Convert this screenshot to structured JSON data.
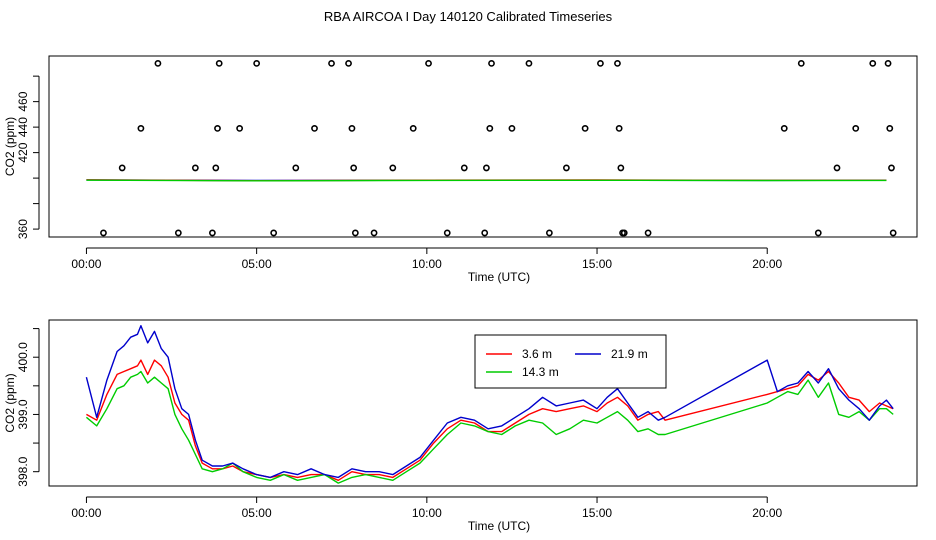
{
  "title": "RBA AIRCOA I  Day 140120  Calibrated Timeseries",
  "colors": {
    "axis": "#000000",
    "series_3_6m": "#ff0000",
    "series_14_3m": "#00cc00",
    "series_21_9m": "#0000cc",
    "flag_points": "#000000"
  },
  "chart_data": [
    {
      "type": "scatter",
      "title": "",
      "xlabel": "Time (UTC)",
      "ylabel": "CO2 (ppm)",
      "xlim": [
        -1.1,
        24.4
      ],
      "ylim": [
        353.8,
        495.8
      ],
      "x_ticks": [
        0,
        5,
        10,
        15,
        20
      ],
      "x_tick_labels": [
        "00:00",
        "05:00",
        "10:00",
        "15:00",
        "20:00"
      ],
      "y_ticks": [
        360,
        380,
        400,
        420,
        440,
        460,
        480
      ],
      "y_tick_labels": [
        "360",
        "",
        "",
        "420",
        "440",
        "460",
        ""
      ],
      "grid": false,
      "points": {
        "x": [
          0.5,
          1.05,
          1.6,
          2.1,
          2.7,
          3.2,
          3.7,
          3.8,
          3.85,
          3.9,
          4.5,
          5.0,
          5.5,
          6.15,
          6.7,
          7.2,
          7.7,
          7.8,
          7.85,
          7.9,
          8.45,
          9.0,
          9.6,
          10.05,
          10.6,
          11.1,
          11.7,
          11.75,
          11.85,
          11.9,
          12.5,
          13.0,
          13.6,
          14.1,
          14.65,
          15.1,
          15.6,
          15.65,
          15.7,
          15.75,
          15.8,
          16.5,
          20.5,
          21.0,
          21.5,
          22.05,
          22.6,
          23.1,
          23.55,
          23.6,
          23.65,
          23.7
        ],
        "y": [
          357,
          408,
          439,
          490,
          357,
          408,
          357,
          408,
          439,
          490,
          439,
          490,
          357,
          408,
          439,
          490,
          490,
          439,
          408,
          357,
          357,
          408,
          439,
          490,
          357,
          408,
          357,
          408,
          439,
          490,
          439,
          490,
          357,
          408,
          439,
          490,
          490,
          439,
          408,
          357,
          357,
          357,
          439,
          490,
          357,
          408,
          439,
          490,
          490,
          439,
          408,
          357
        ]
      },
      "series": [
        {
          "name": "21.9 m",
          "x": [
            0,
            5,
            10,
            15,
            20,
            23.5
          ],
          "y": [
            398.6,
            398.1,
            398.3,
            398.4,
            398.2,
            398.4
          ]
        },
        {
          "name": "3.6 m",
          "x": [
            0,
            5,
            10,
            15,
            20,
            23.5
          ],
          "y": [
            398.7,
            398.0,
            398.4,
            398.5,
            398.3,
            398.3
          ]
        },
        {
          "name": "14.3 m",
          "x": [
            0,
            5,
            10,
            15,
            20,
            23.5
          ],
          "y": [
            398.4,
            397.9,
            398.2,
            398.3,
            398.1,
            398.2
          ]
        }
      ]
    },
    {
      "type": "line",
      "title": "",
      "xlabel": "Time (UTC)",
      "ylabel": "CO2 (ppm)",
      "xlim": [
        -1.1,
        24.4
      ],
      "ylim": [
        397.75,
        400.65
      ],
      "x_ticks": [
        0,
        5,
        10,
        15,
        20
      ],
      "x_tick_labels": [
        "00:00",
        "05:00",
        "10:00",
        "15:00",
        "20:00"
      ],
      "y_ticks": [
        398.0,
        398.5,
        399.0,
        399.5,
        400.0,
        400.5
      ],
      "y_tick_labels": [
        "398.0",
        "",
        "399.0",
        "",
        "400.0",
        ""
      ],
      "grid": false,
      "legend": {
        "position": "top-center",
        "columns": 2
      },
      "series": [
        {
          "name": "3.6 m",
          "x": [
            0,
            0.3,
            0.6,
            0.9,
            1.1,
            1.3,
            1.5,
            1.6,
            1.8,
            2.0,
            2.2,
            2.4,
            2.6,
            2.8,
            3.0,
            3.2,
            3.4,
            3.7,
            4.0,
            4.3,
            4.6,
            5.0,
            5.4,
            5.8,
            6.2,
            6.6,
            7.0,
            7.4,
            7.8,
            8.2,
            8.6,
            9.0,
            9.4,
            9.8,
            10.2,
            10.6,
            11.0,
            11.4,
            11.8,
            12.2,
            12.6,
            13.0,
            13.4,
            13.8,
            14.2,
            14.6,
            15.0,
            15.3,
            15.6,
            15.9,
            16.2,
            16.5,
            16.8,
            17.0,
            20.0,
            20.3,
            20.6,
            20.9,
            21.2,
            21.5,
            21.8,
            22.1,
            22.4,
            22.7,
            23.0,
            23.3,
            23.5,
            23.7
          ],
          "y": [
            399.0,
            398.9,
            399.35,
            399.7,
            399.75,
            399.8,
            399.85,
            399.95,
            399.7,
            399.95,
            399.85,
            399.65,
            399.2,
            399.0,
            398.9,
            398.45,
            398.15,
            398.05,
            398.05,
            398.1,
            398.0,
            397.95,
            397.9,
            397.95,
            397.9,
            397.95,
            397.95,
            397.85,
            398.0,
            397.95,
            397.95,
            397.9,
            398.05,
            398.2,
            398.5,
            398.75,
            398.9,
            398.85,
            398.7,
            398.7,
            398.85,
            399.0,
            399.1,
            399.05,
            399.1,
            399.15,
            399.05,
            399.2,
            399.3,
            399.15,
            398.9,
            399.0,
            399.05,
            398.9,
            399.35,
            399.4,
            399.45,
            399.5,
            399.7,
            399.6,
            399.75,
            399.55,
            399.3,
            399.25,
            399.05,
            399.2,
            399.15,
            399.1
          ]
        },
        {
          "name": "14.3 m",
          "x": [
            0,
            0.3,
            0.6,
            0.9,
            1.1,
            1.3,
            1.5,
            1.6,
            1.8,
            2.0,
            2.2,
            2.4,
            2.6,
            2.8,
            3.0,
            3.2,
            3.4,
            3.7,
            4.0,
            4.3,
            4.6,
            5.0,
            5.4,
            5.8,
            6.2,
            6.6,
            7.0,
            7.4,
            7.8,
            8.2,
            8.6,
            9.0,
            9.4,
            9.8,
            10.2,
            10.6,
            11.0,
            11.4,
            11.8,
            12.2,
            12.6,
            13.0,
            13.4,
            13.8,
            14.2,
            14.6,
            15.0,
            15.3,
            15.6,
            15.9,
            16.2,
            16.5,
            16.8,
            17.0,
            20.0,
            20.3,
            20.6,
            20.9,
            21.2,
            21.5,
            21.8,
            22.1,
            22.4,
            22.7,
            23.0,
            23.3,
            23.5,
            23.7
          ],
          "y": [
            398.95,
            398.8,
            399.1,
            399.45,
            399.5,
            399.65,
            399.7,
            399.75,
            399.55,
            399.65,
            399.55,
            399.45,
            399.0,
            398.75,
            398.55,
            398.3,
            398.05,
            398.0,
            398.05,
            398.15,
            398.0,
            397.9,
            397.85,
            397.95,
            397.85,
            397.9,
            397.95,
            397.8,
            397.9,
            397.95,
            397.9,
            397.85,
            398.0,
            398.15,
            398.4,
            398.65,
            398.85,
            398.8,
            398.7,
            398.65,
            398.8,
            398.9,
            398.85,
            398.65,
            398.75,
            398.9,
            398.85,
            398.95,
            399.05,
            398.9,
            398.7,
            398.75,
            398.65,
            398.65,
            399.2,
            399.3,
            399.4,
            399.35,
            399.6,
            399.3,
            399.55,
            399.0,
            398.95,
            399.05,
            398.9,
            399.1,
            399.1,
            399.0
          ]
        },
        {
          "name": "21.9 m",
          "x": [
            0,
            0.3,
            0.6,
            0.9,
            1.1,
            1.3,
            1.5,
            1.6,
            1.8,
            2.0,
            2.2,
            2.4,
            2.6,
            2.8,
            3.0,
            3.2,
            3.4,
            3.7,
            4.0,
            4.3,
            4.6,
            5.0,
            5.4,
            5.8,
            6.2,
            6.6,
            7.0,
            7.4,
            7.8,
            8.2,
            8.6,
            9.0,
            9.4,
            9.8,
            10.2,
            10.6,
            11.0,
            11.4,
            11.8,
            12.2,
            12.6,
            13.0,
            13.4,
            13.8,
            14.2,
            14.6,
            15.0,
            15.3,
            15.6,
            15.9,
            16.2,
            16.5,
            16.8,
            17.0,
            20.0,
            20.3,
            20.6,
            20.9,
            21.2,
            21.5,
            21.8,
            22.1,
            22.4,
            22.7,
            23.0,
            23.3,
            23.5,
            23.7
          ],
          "y": [
            399.65,
            398.95,
            399.6,
            400.1,
            400.2,
            400.35,
            400.4,
            400.55,
            400.25,
            400.45,
            400.15,
            400.0,
            399.45,
            399.1,
            399.0,
            398.55,
            398.2,
            398.1,
            398.1,
            398.15,
            398.05,
            397.95,
            397.9,
            398.0,
            397.95,
            398.05,
            397.95,
            397.9,
            398.05,
            398.0,
            398.0,
            397.95,
            398.1,
            398.25,
            398.55,
            398.85,
            398.95,
            398.9,
            398.75,
            398.8,
            398.95,
            399.1,
            399.3,
            399.15,
            399.2,
            399.25,
            399.1,
            399.3,
            399.45,
            399.2,
            398.95,
            399.05,
            398.9,
            398.95,
            399.95,
            399.4,
            399.5,
            399.55,
            399.75,
            399.55,
            399.8,
            399.45,
            399.25,
            399.1,
            398.9,
            399.15,
            399.25,
            399.1
          ]
        }
      ]
    }
  ]
}
